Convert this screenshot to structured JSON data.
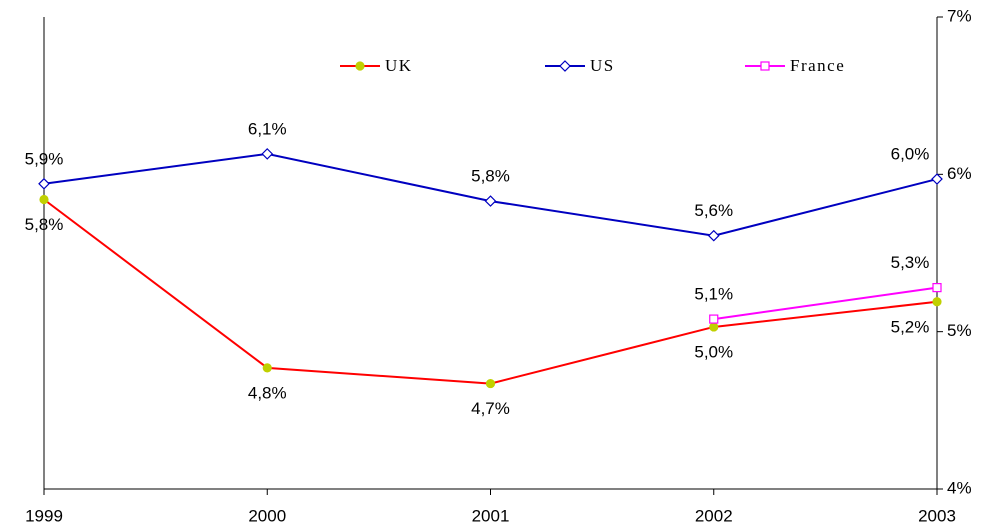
{
  "chart_data": {
    "type": "line",
    "categories": [
      "1999",
      "2000",
      "2001",
      "2002",
      "2003"
    ],
    "series": [
      {
        "name": "UK",
        "color": "#ff0000",
        "marker": "circle",
        "marker_color": "#c0d000",
        "label_position": "below",
        "values": [
          5.84,
          4.77,
          4.67,
          5.03,
          5.19
        ],
        "value_labels": [
          "5,8%",
          "4,8%",
          "4,7%",
          "5,0%",
          "5,2%"
        ]
      },
      {
        "name": "US",
        "color": "#0000c0",
        "marker": "diamond",
        "marker_color": "#ffffff",
        "label_position": "above",
        "values": [
          5.94,
          6.13,
          5.83,
          5.61,
          5.97
        ],
        "value_labels": [
          "5,9%",
          "6,1%",
          "5,8%",
          "5,6%",
          "6,0%"
        ]
      },
      {
        "name": "France",
        "color": "#ff00ff",
        "marker": "square",
        "marker_color": "#ffffff",
        "label_position": "above",
        "values": [
          null,
          null,
          null,
          5.08,
          5.28
        ],
        "value_labels": [
          null,
          null,
          null,
          "5,1%",
          "5,3%"
        ]
      }
    ],
    "ylim": [
      4,
      7
    ],
    "yticks": [
      {
        "value": 4,
        "label": "4%"
      },
      {
        "value": 5,
        "label": "5%"
      },
      {
        "value": 6,
        "label": "6%"
      },
      {
        "value": 7,
        "label": "7%"
      }
    ],
    "y_axis_side": "right",
    "grid": false,
    "legend": "top"
  }
}
